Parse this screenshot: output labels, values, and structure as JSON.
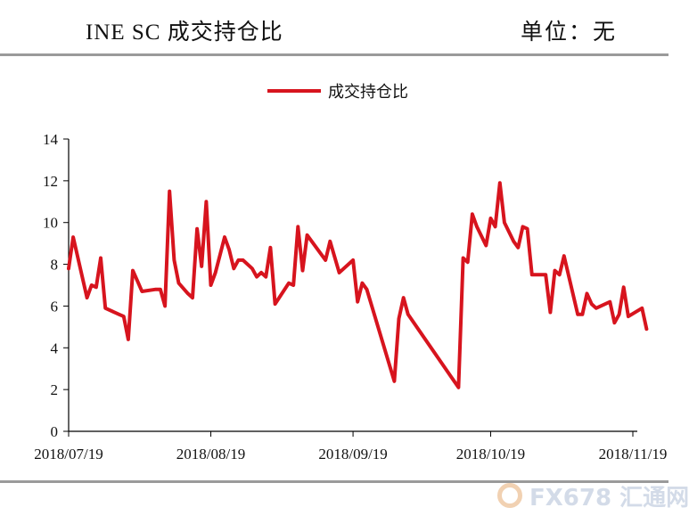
{
  "header": {
    "title": "INE SC 成交持仓比",
    "unit": "单位：无"
  },
  "watermark": {
    "text": "FX678 汇通网"
  },
  "chart_data": {
    "type": "line",
    "title": "INE SC 成交持仓比",
    "xlabel": "",
    "ylabel": "",
    "ylim": [
      0,
      14
    ],
    "yticks": [
      0,
      2,
      4,
      6,
      8,
      10,
      12,
      14
    ],
    "x_tick_labels": [
      "2018/07/19",
      "2018/08/19",
      "2018/09/19",
      "2018/10/19",
      "2018/11/19"
    ],
    "grid": false,
    "legend_position": "top-center",
    "series": [
      {
        "name": "成交持仓比",
        "color": "#d7141e",
        "points": [
          [
            "2018-07-19",
            7.8
          ],
          [
            "2018-07-20",
            9.3
          ],
          [
            "2018-07-23",
            6.4
          ],
          [
            "2018-07-24",
            7.0
          ],
          [
            "2018-07-25",
            6.9
          ],
          [
            "2018-07-26",
            8.3
          ],
          [
            "2018-07-27",
            5.9
          ],
          [
            "2018-07-30",
            5.6
          ],
          [
            "2018-07-31",
            5.5
          ],
          [
            "2018-08-01",
            4.4
          ],
          [
            "2018-08-02",
            7.7
          ],
          [
            "2018-08-03",
            7.2
          ],
          [
            "2018-08-04",
            6.7
          ],
          [
            "2018-08-07",
            6.8
          ],
          [
            "2018-08-08",
            6.8
          ],
          [
            "2018-08-09",
            6.0
          ],
          [
            "2018-08-10",
            11.5
          ],
          [
            "2018-08-11",
            8.2
          ],
          [
            "2018-08-12",
            7.1
          ],
          [
            "2018-08-14",
            6.6
          ],
          [
            "2018-08-15",
            6.4
          ],
          [
            "2018-08-16",
            9.7
          ],
          [
            "2018-08-17",
            7.9
          ],
          [
            "2018-08-18",
            11.0
          ],
          [
            "2018-08-19",
            7.0
          ],
          [
            "2018-08-20",
            7.6
          ],
          [
            "2018-08-22",
            9.3
          ],
          [
            "2018-08-23",
            8.7
          ],
          [
            "2018-08-24",
            7.8
          ],
          [
            "2018-08-25",
            8.2
          ],
          [
            "2018-08-26",
            8.2
          ],
          [
            "2018-08-28",
            7.8
          ],
          [
            "2018-08-29",
            7.4
          ],
          [
            "2018-08-30",
            7.6
          ],
          [
            "2018-08-31",
            7.4
          ],
          [
            "2018-09-01",
            8.8
          ],
          [
            "2018-09-02",
            6.1
          ],
          [
            "2018-09-05",
            7.1
          ],
          [
            "2018-09-06",
            7.0
          ],
          [
            "2018-09-07",
            9.8
          ],
          [
            "2018-09-08",
            7.7
          ],
          [
            "2018-09-09",
            9.4
          ],
          [
            "2018-09-13",
            8.2
          ],
          [
            "2018-09-14",
            9.1
          ],
          [
            "2018-09-16",
            7.6
          ],
          [
            "2018-09-19",
            8.2
          ],
          [
            "2018-09-20",
            6.2
          ],
          [
            "2018-09-21",
            7.1
          ],
          [
            "2018-09-22",
            6.8
          ],
          [
            "2018-09-28",
            2.4
          ],
          [
            "2018-09-29",
            5.4
          ],
          [
            "2018-09-30",
            6.4
          ],
          [
            "2018-10-01",
            5.6
          ],
          [
            "2018-10-12",
            2.1
          ],
          [
            "2018-10-13",
            8.3
          ],
          [
            "2018-10-14",
            8.1
          ],
          [
            "2018-10-15",
            10.4
          ],
          [
            "2018-10-16",
            9.8
          ],
          [
            "2018-10-18",
            8.9
          ],
          [
            "2018-10-19",
            10.2
          ],
          [
            "2018-10-20",
            9.8
          ],
          [
            "2018-10-21",
            11.9
          ],
          [
            "2018-10-22",
            10.0
          ],
          [
            "2018-10-24",
            9.1
          ],
          [
            "2018-10-25",
            8.8
          ],
          [
            "2018-10-26",
            9.8
          ],
          [
            "2018-10-27",
            9.7
          ],
          [
            "2018-10-28",
            7.5
          ],
          [
            "2018-10-31",
            7.5
          ],
          [
            "2018-11-01",
            5.7
          ],
          [
            "2018-11-02",
            7.7
          ],
          [
            "2018-11-03",
            7.5
          ],
          [
            "2018-11-04",
            8.4
          ],
          [
            "2018-11-07",
            5.6
          ],
          [
            "2018-11-08",
            5.6
          ],
          [
            "2018-11-09",
            6.6
          ],
          [
            "2018-11-10",
            6.1
          ],
          [
            "2018-11-11",
            5.9
          ],
          [
            "2018-11-14",
            6.2
          ],
          [
            "2018-11-15",
            5.2
          ],
          [
            "2018-11-16",
            5.6
          ],
          [
            "2018-11-17",
            6.9
          ],
          [
            "2018-11-18",
            5.5
          ],
          [
            "2018-11-21",
            5.9
          ],
          [
            "2018-11-22",
            4.9
          ]
        ]
      }
    ]
  }
}
